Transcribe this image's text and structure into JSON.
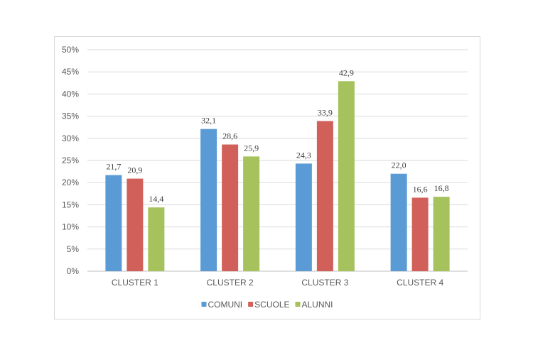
{
  "chart_data": {
    "type": "bar",
    "title": "",
    "xlabel": "",
    "ylabel": "",
    "categories": [
      "CLUSTER 1",
      "CLUSTER 2",
      "CLUSTER 3",
      "CLUSTER 4"
    ],
    "series": [
      {
        "name": "COMUNI",
        "color": "#5b9bd5",
        "values": [
          21.7,
          32.1,
          24.3,
          22.0
        ],
        "labels": [
          "21,7",
          "32,1",
          "24,3",
          "22,0"
        ]
      },
      {
        "name": "SCUOLE",
        "color": "#d2605a",
        "values": [
          20.9,
          28.6,
          33.9,
          16.6
        ],
        "labels": [
          "20,9",
          "28,6",
          "33,9",
          "16,6"
        ]
      },
      {
        "name": "ALUNNI",
        "color": "#a5c25c",
        "values": [
          14.4,
          25.9,
          42.9,
          16.8
        ],
        "labels": [
          "14,4",
          "25,9",
          "42,9",
          "16,8"
        ]
      }
    ],
    "ylim": [
      0,
      50
    ],
    "y_ticks": [
      "0%",
      "5%",
      "10%",
      "15%",
      "20%",
      "25%",
      "30%",
      "35%",
      "40%",
      "45%",
      "50%"
    ],
    "grid": true,
    "legend_position": "bottom",
    "gridline_color": "#d9d9d9",
    "axis_color": "#bfbfbf"
  }
}
